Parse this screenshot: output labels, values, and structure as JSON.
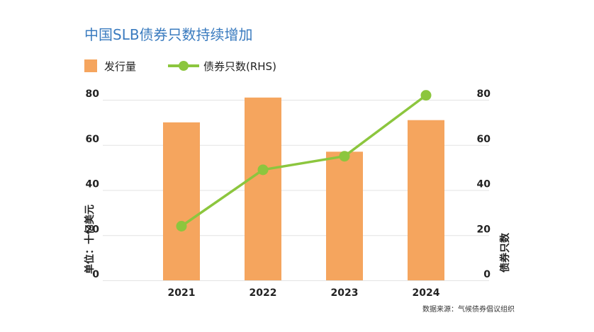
{
  "chart_data": {
    "type": "bar",
    "title": "中国SLB债券只数持续增加",
    "categories": [
      "2021",
      "2022",
      "2023",
      "2024"
    ],
    "series": [
      {
        "name": "发行量",
        "type": "bar",
        "axis": "left",
        "values": [
          70,
          81,
          57,
          71
        ]
      },
      {
        "name": "债券只数(RHS)",
        "type": "line",
        "axis": "right",
        "values": [
          24,
          49,
          55,
          82
        ]
      }
    ],
    "ylabel": "单位：十亿美元",
    "y2label": "债券只数",
    "ylim": [
      0,
      80
    ],
    "y2lim": [
      0,
      80
    ],
    "yticks": [
      0,
      20,
      40,
      60,
      80
    ],
    "y2ticks": [
      0,
      20,
      40,
      60,
      80
    ],
    "grid": true,
    "legend_position": "top-left",
    "colors": {
      "bar": "#f5a55e",
      "line": "#8cc63e",
      "title": "#3a7bbf",
      "grid": "#e3e3e3"
    }
  },
  "source": "数据来源：气候债券倡议组织"
}
